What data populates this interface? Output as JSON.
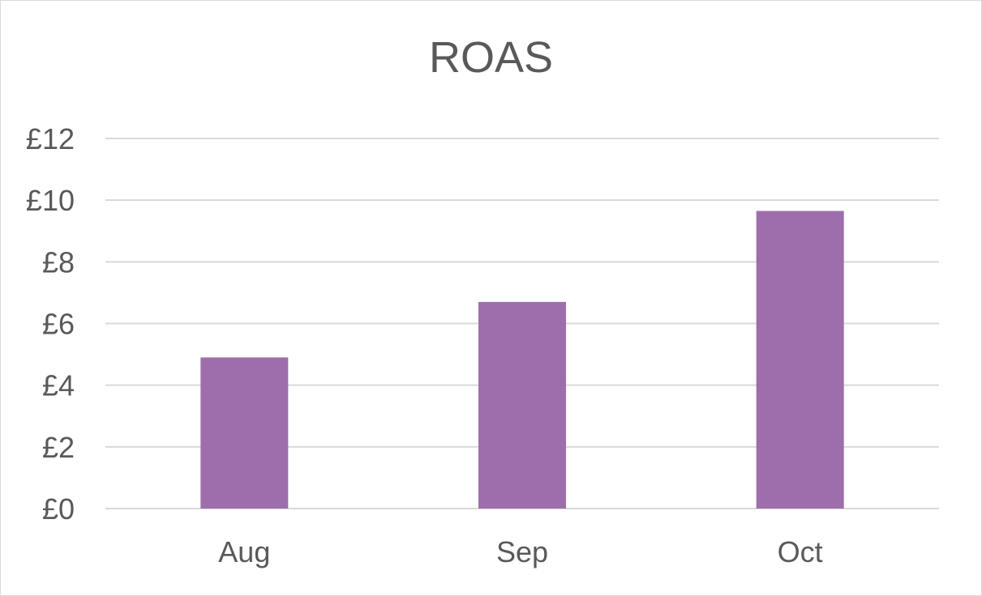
{
  "chart_data": {
    "type": "bar",
    "title": "ROAS",
    "categories": [
      "Aug",
      "Sep",
      "Oct"
    ],
    "values": [
      4.9,
      6.7,
      9.65
    ],
    "ylim": [
      0,
      12
    ],
    "yticks": [
      0,
      2,
      4,
      6,
      8,
      10,
      12
    ],
    "ytick_labels": [
      "£0",
      "£2",
      "£4",
      "£6",
      "£8",
      "£10",
      "£12"
    ],
    "grid": true,
    "legend": "none",
    "bar_color": "#9e6eac",
    "xlabel": "",
    "ylabel": ""
  }
}
